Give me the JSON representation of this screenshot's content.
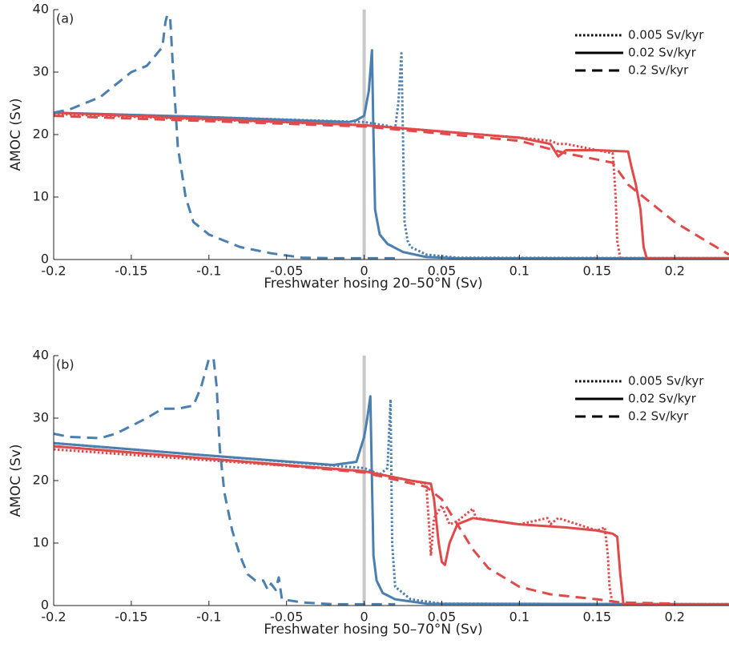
{
  "chart_data": [
    {
      "type": "line",
      "label": "(a)",
      "xlabel": "Freshwater hosing 20–50°N (Sv)",
      "ylabel": "AMOC (Sv)",
      "xlim": [
        -0.2,
        0.235
      ],
      "xticks": [
        -0.2,
        -0.15,
        -0.1,
        -0.05,
        0,
        0.05,
        0.1,
        0.15,
        0.2
      ],
      "ylim": [
        0,
        40
      ],
      "yticks": [
        0,
        10,
        20,
        30,
        40
      ],
      "vline": 0,
      "legend": "upper right",
      "series": [
        {
          "name": "0.005 Sv/kyr",
          "dash": "dotted",
          "lines": [
            {
              "color": "#4a7fb0",
              "x": [
                -0.2,
                -0.1,
                0,
                0.015,
                0.02,
                0.022,
                0.024,
                0.025,
                0.026,
                0.028,
                0.03,
                0.04,
                0.06,
                0.235
              ],
              "values": [
                23.5,
                22.8,
                22,
                21.4,
                21,
                25,
                33,
                20,
                6,
                3,
                2,
                0.8,
                0.3,
                0.2
              ]
            },
            {
              "color": "#e04a4a",
              "x": [
                -0.2,
                0,
                0.1,
                0.12,
                0.125,
                0.13,
                0.15,
                0.16,
                0.161,
                0.162,
                0.163,
                0.165,
                0.235
              ],
              "values": [
                23.3,
                21.5,
                19.5,
                19,
                18.5,
                18.5,
                17.5,
                17,
                14,
                10,
                3,
                0.2,
                0.2
              ]
            }
          ]
        },
        {
          "name": "0.02 Sv/kyr",
          "dash": "solid",
          "lines": [
            {
              "color": "#4a7fb0",
              "x": [
                -0.2,
                -0.1,
                -0.01,
                -0.005,
                0,
                0.003,
                0.005,
                0.006,
                0.007,
                0.01,
                0.015,
                0.025,
                0.04,
                0.06,
                0.235
              ],
              "values": [
                23.5,
                22.8,
                22,
                22.3,
                23,
                27,
                33.5,
                20,
                8,
                4,
                2.5,
                1.2,
                0.4,
                0.2,
                0.2
              ]
            },
            {
              "color": "#e04a4a",
              "x": [
                -0.2,
                0,
                0.1,
                0.12,
                0.125,
                0.13,
                0.15,
                0.17,
                0.172,
                0.175,
                0.178,
                0.18,
                0.182,
                0.235
              ],
              "values": [
                23.5,
                21.5,
                19.5,
                18.5,
                16.5,
                17.5,
                17.5,
                17.3,
                15,
                12,
                8,
                2,
                0.2,
                0.2
              ]
            }
          ]
        },
        {
          "name": "0.2 Sv/kyr",
          "dash": "dashed",
          "lines": [
            {
              "color": "#4a7fb0",
              "x": [
                -0.2,
                -0.19,
                -0.17,
                -0.16,
                -0.15,
                -0.14,
                -0.13,
                -0.128,
                -0.127,
                -0.125,
                -0.123,
                -0.12,
                -0.115,
                -0.11,
                -0.1,
                -0.08,
                -0.06,
                -0.04,
                -0.02,
                0.02
              ],
              "values": [
                23.5,
                24,
                26,
                28,
                30,
                31,
                34,
                38,
                39,
                39,
                30,
                18,
                10,
                6,
                4,
                2,
                1,
                0.3,
                0.2,
                0.2
              ]
            },
            {
              "color": "#e04a4a",
              "x": [
                -0.2,
                0,
                0.1,
                0.13,
                0.15,
                0.16,
                0.17,
                0.18,
                0.2,
                0.22,
                0.235
              ],
              "values": [
                23,
                21.3,
                19,
                17,
                16,
                15.5,
                12,
                10,
                6,
                3,
                0.8
              ]
            }
          ]
        }
      ]
    },
    {
      "type": "line",
      "label": "(b)",
      "xlabel": "Freshwater hosing 50–70°N (Sv)",
      "ylabel": "AMOC (Sv)",
      "xlim": [
        -0.2,
        0.235
      ],
      "xticks": [
        -0.2,
        -0.15,
        -0.1,
        -0.05,
        0,
        0.05,
        0.1,
        0.15,
        0.2
      ],
      "ylim": [
        0,
        40
      ],
      "yticks": [
        0,
        10,
        20,
        30,
        40
      ],
      "vline": 0,
      "legend": "upper right",
      "series": [
        {
          "name": "0.005 Sv/kyr",
          "dash": "dotted",
          "lines": [
            {
              "color": "#4a7fb0",
              "x": [
                -0.2,
                -0.1,
                0,
                0.01,
                0.015,
                0.017,
                0.018,
                0.02,
                0.03,
                0.05,
                0.235
              ],
              "values": [
                26,
                24,
                22,
                21,
                22,
                33,
                10,
                3,
                1,
                0.3,
                0.2
              ]
            },
            {
              "color": "#e04a4a",
              "x": [
                -0.2,
                0,
                0.04,
                0.042,
                0.043,
                0.045,
                0.05,
                0.055,
                0.06,
                0.07,
                0.072,
                0.1,
                0.118,
                0.12,
                0.125,
                0.15,
                0.155,
                0.157,
                0.158,
                0.16,
                0.235
              ],
              "values": [
                25,
                21.5,
                19.5,
                12,
                8,
                14,
                16,
                13,
                13.5,
                15.5,
                14,
                13,
                14,
                13,
                14,
                12,
                12.5,
                8,
                3,
                0.2,
                0.2
              ]
            }
          ]
        },
        {
          "name": "0.02 Sv/kyr",
          "dash": "solid",
          "lines": [
            {
              "color": "#4a7fb0",
              "x": [
                -0.2,
                -0.1,
                -0.02,
                -0.005,
                0,
                0.002,
                0.004,
                0.005,
                0.006,
                0.008,
                0.012,
                0.02,
                0.04,
                0.235
              ],
              "values": [
                26,
                24,
                22.5,
                23,
                27,
                30,
                33.5,
                20,
                8,
                4,
                2,
                1,
                0.3,
                0.2
              ]
            },
            {
              "color": "#e04a4a",
              "x": [
                -0.2,
                0,
                0.03,
                0.043,
                0.045,
                0.048,
                0.05,
                0.052,
                0.055,
                0.06,
                0.07,
                0.1,
                0.13,
                0.15,
                0.16,
                0.163,
                0.165,
                0.167,
                0.235
              ],
              "values": [
                25.5,
                21.5,
                20,
                19.5,
                17,
                10,
                7,
                6.5,
                10,
                13,
                14,
                13,
                12.5,
                12,
                11.5,
                11,
                5,
                0.2,
                0.2
              ]
            }
          ]
        },
        {
          "name": "0.2 Sv/kyr",
          "dash": "dashed",
          "lines": [
            {
              "color": "#4a7fb0",
              "x": [
                -0.2,
                -0.19,
                -0.17,
                -0.16,
                -0.14,
                -0.13,
                -0.12,
                -0.11,
                -0.105,
                -0.1,
                -0.097,
                -0.095,
                -0.093,
                -0.09,
                -0.085,
                -0.08,
                -0.075,
                -0.07,
                -0.065,
                -0.062,
                -0.06,
                -0.057,
                -0.055,
                -0.053,
                -0.04,
                -0.02,
                0.02
              ],
              "values": [
                27.5,
                27,
                26.8,
                27.5,
                30,
                31.5,
                31.5,
                32,
                35,
                39.5,
                39.5,
                35,
                25,
                18,
                12,
                8,
                5,
                4,
                4,
                2.5,
                3.5,
                2.5,
                4.5,
                1,
                0.5,
                0.2,
                0.2
              ]
            },
            {
              "color": "#e04a4a",
              "x": [
                -0.2,
                -0.1,
                0,
                0.04,
                0.05,
                0.06,
                0.07,
                0.08,
                0.1,
                0.12,
                0.15,
                0.165,
                0.2
              ],
              "values": [
                25.5,
                23.5,
                21.3,
                19,
                17,
                13,
                9,
                6,
                3,
                1.8,
                1,
                0.5,
                0.3
              ]
            }
          ]
        }
      ]
    }
  ]
}
